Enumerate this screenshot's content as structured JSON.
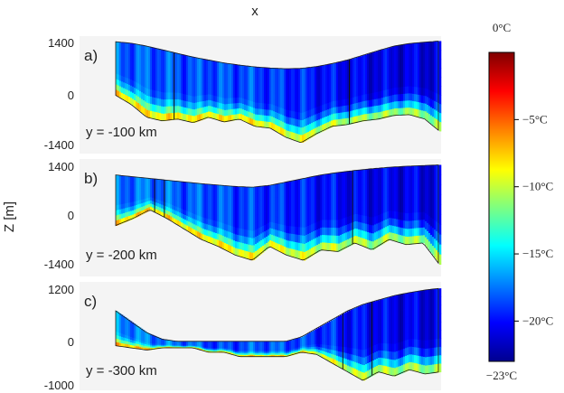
{
  "chart_data": [
    {
      "type": "heatmap",
      "panel_label": "a)",
      "annotation": "y = -100 km",
      "yticks": [
        "1400",
        "0",
        "-1400"
      ],
      "ylim": [
        -1400,
        1400
      ],
      "surface": [
        1420,
        1380,
        1300,
        1200,
        1100,
        1000,
        920,
        840,
        780,
        730,
        700,
        680,
        690,
        740,
        820,
        920,
        1050,
        1180,
        1300,
        1370,
        1410,
        1440
      ],
      "bed": [
        -50,
        -300,
        -650,
        -750,
        -700,
        -800,
        -650,
        -780,
        -700,
        -900,
        -950,
        -1200,
        -1350,
        -1100,
        -900,
        -850,
        -750,
        -700,
        -600,
        -580,
        -700,
        -1050
      ],
      "blue_shade": [
        0.35,
        0.4,
        0.38,
        0.45,
        0.4,
        0.5,
        0.42,
        0.48,
        0.45,
        0.5,
        0.55,
        0.6,
        0.65,
        0.72,
        0.8,
        0.85,
        0.9,
        0.92,
        0.95,
        0.95,
        0.96,
        0.97
      ],
      "vlines": [
        0.18,
        0.72
      ]
    },
    {
      "type": "heatmap",
      "panel_label": "b)",
      "annotation": "y = -200 km",
      "yticks": [
        "1400",
        "0",
        "-1400"
      ],
      "ylim": [
        -1400,
        1400
      ],
      "surface": [
        1150,
        1100,
        1050,
        1000,
        950,
        900,
        860,
        820,
        800,
        850,
        950,
        1050,
        1150,
        1220,
        1280,
        1330,
        1370,
        1400,
        1420,
        1440
      ],
      "bed": [
        -300,
        -100,
        150,
        -100,
        -400,
        -700,
        -900,
        -1150,
        -1300,
        -900,
        -1150,
        -1300,
        -1000,
        -1050,
        -800,
        -1000,
        -700,
        -850,
        -800,
        -1450
      ],
      "blue_shade": [
        0.35,
        0.3,
        0.3,
        0.35,
        0.4,
        0.42,
        0.45,
        0.5,
        0.55,
        0.6,
        0.62,
        0.7,
        0.75,
        0.8,
        0.85,
        0.88,
        0.9,
        0.92,
        0.94,
        0.95
      ],
      "vlines": [
        0.12,
        0.15,
        0.73
      ]
    },
    {
      "type": "heatmap",
      "panel_label": "c)",
      "annotation": "y = -300 km",
      "yticks": [
        "1200",
        "0",
        "-1000"
      ],
      "ylim": [
        -1000,
        1200
      ],
      "surface": [
        700,
        450,
        200,
        50,
        0,
        0,
        0,
        0,
        0,
        0,
        0,
        0,
        100,
        300,
        500,
        700,
        850,
        950,
        1050,
        1120,
        1180,
        1220
      ],
      "bed": [
        -100,
        -150,
        -200,
        -150,
        -150,
        -150,
        -250,
        -250,
        -350,
        -350,
        -350,
        -350,
        -250,
        -300,
        -500,
        -700,
        -900,
        -700,
        -800,
        -650,
        -750,
        -700
      ],
      "blue_shade": [
        0.2,
        0.2,
        0.25,
        0.3,
        0.3,
        0.35,
        0.5,
        0.55,
        0.45,
        0.4,
        0.4,
        0.45,
        0.5,
        0.6,
        0.65,
        0.75,
        0.8,
        0.85,
        0.9,
        0.92,
        0.94,
        0.95
      ],
      "vlines": [
        0.7,
        0.79
      ]
    }
  ],
  "figure": {
    "xlabel": "x",
    "ylabel": "Z [m]"
  },
  "colorbar": {
    "min_label": "−23°C",
    "max_label": "0°C",
    "ticks": [
      "−5°C",
      "−10°C",
      "−15°C",
      "−20°C"
    ],
    "tick_values": [
      -5,
      -10,
      -15,
      -20
    ],
    "vmin": -23,
    "vmax": 0,
    "colormap": [
      "#00008f",
      "#0000ff",
      "#00a0ff",
      "#00ffff",
      "#7fff7f",
      "#ffff00",
      "#ff8000",
      "#ff0000",
      "#800000"
    ]
  }
}
